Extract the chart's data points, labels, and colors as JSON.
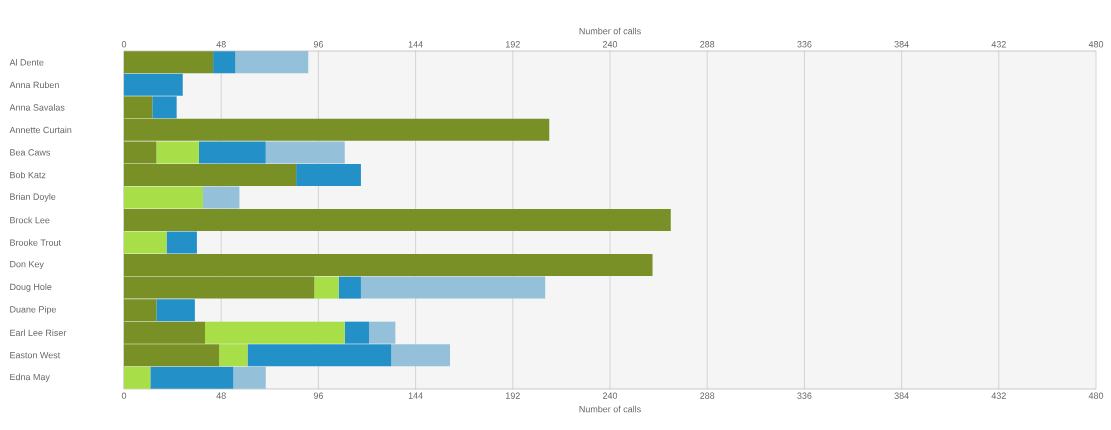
{
  "chart_data": {
    "type": "bar",
    "orientation": "horizontal",
    "stacked": true,
    "categories": [
      "Al Dente",
      "Anna Ruben",
      "Anna Savalas",
      "Annette Curtain",
      "Bea Caws",
      "Bob Katz",
      "Brian Doyle",
      "Brock Lee",
      "Brooke Trout",
      "Don Key",
      "Doug Hole",
      "Duane Pipe",
      "Earl Lee Riser",
      "Easton West",
      "Edna May"
    ],
    "series": [
      {
        "color": "#789025",
        "values": [
          44,
          0,
          14,
          210,
          16,
          85,
          0,
          270,
          0,
          261,
          94,
          16,
          40,
          47,
          0
        ]
      },
      {
        "color": "#a8df48",
        "values": [
          0,
          0,
          0,
          0,
          21,
          0,
          39,
          0,
          21,
          0,
          12,
          0,
          69,
          14,
          13
        ]
      },
      {
        "color": "#2490c8",
        "values": [
          11,
          29,
          12,
          0,
          33,
          32,
          0,
          0,
          15,
          0,
          11,
          19,
          12,
          71,
          41
        ]
      },
      {
        "color": "#94c1d9",
        "values": [
          36,
          0,
          0,
          0,
          39,
          0,
          18,
          0,
          0,
          0,
          91,
          0,
          13,
          29,
          16
        ]
      }
    ],
    "xlim": [
      0,
      480
    ],
    "xticks": [
      0,
      48,
      96,
      144,
      192,
      240,
      288,
      336,
      384,
      432,
      480
    ],
    "x2lim": [
      0,
      480
    ],
    "x2ticks": [
      0,
      48,
      96,
      144,
      192,
      240,
      288,
      336,
      384,
      432,
      480
    ],
    "xlabel": "Number of calls",
    "x2label": "Number of calls",
    "grid": "x"
  }
}
